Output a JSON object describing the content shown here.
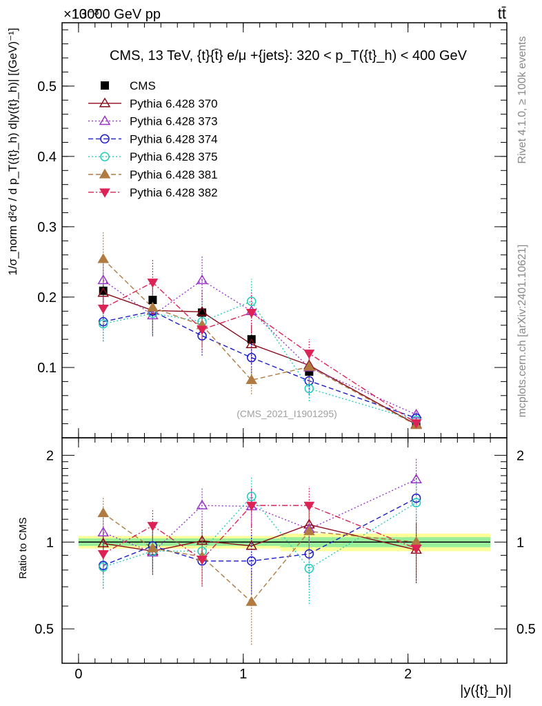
{
  "header": {
    "left": "13000 GeV pp",
    "right": "tt̄",
    "exponent": "×10⁻³"
  },
  "side_text": {
    "rivet": "Rivet 4.1.0, ≥ 100k events",
    "mcplots": "mcplots.cern.ch [arXiv:2401.10621]"
  },
  "watermark": "(CMS_2021_I1901295)",
  "chart_data": {
    "type": "line",
    "title": "CMS, 13 TeV, {t}{t̄} e/μ +{jets}: 320 <  p_T({t}_h) < 400 GeV",
    "xlabel": "|y({t}_h)|",
    "ylabel": "1/σ_norm d²σ / d p_T({t}_h) d|y({t}_h)| [(GeV)⁻¹]",
    "ratio_ylabel": "Ratio to CMS",
    "xlim": [
      -0.1,
      2.6
    ],
    "ylim": [
      0,
      0.59
    ],
    "ratio_ylim": [
      0.38,
      2.3
    ],
    "x_ticks": [
      "0",
      "1",
      "2"
    ],
    "y_ticks": [
      "0.1",
      "0.2",
      "0.3",
      "0.4",
      "0.5"
    ],
    "ratio_ticks": [
      "0.5",
      "1",
      "2"
    ],
    "x": [
      0.15,
      0.45,
      0.75,
      1.05,
      1.4,
      2.05
    ],
    "ref_band_inner": [
      0.03,
      0.03,
      0.03,
      0.03,
      0.04,
      0.04
    ],
    "ref_band_outer": [
      0.05,
      0.05,
      0.05,
      0.05,
      0.07,
      0.07
    ],
    "series": [
      {
        "name": "CMS",
        "color": "#000000",
        "marker": "square",
        "line": "none",
        "values": [
          0.209,
          0.196,
          0.178,
          0.14,
          0.094,
          0.02
        ],
        "ratio": [
          1,
          1,
          1,
          1,
          1,
          1
        ]
      },
      {
        "name": "Pythia 6.428 370",
        "color": "#8b0a1a",
        "marker": "triangle-open",
        "line": "solid",
        "values": [
          0.206,
          0.181,
          0.179,
          0.133,
          0.103,
          0.019
        ],
        "ratio": [
          0.99,
          0.93,
          1.01,
          0.97,
          1.15,
          0.94
        ]
      },
      {
        "name": "Pythia 6.428 373",
        "color": "#9933cc",
        "marker": "triangle-open",
        "line": "dotted",
        "values": [
          0.224,
          0.174,
          0.224,
          0.18,
          0.1,
          0.033
        ],
        "ratio": [
          1.08,
          0.92,
          1.34,
          1.33,
          1.11,
          1.65
        ]
      },
      {
        "name": "Pythia 6.428 374",
        "color": "#1a1acc",
        "marker": "circle-open",
        "line": "dashed",
        "values": [
          0.165,
          0.18,
          0.145,
          0.114,
          0.081,
          0.028
        ],
        "ratio": [
          0.83,
          0.97,
          0.86,
          0.86,
          0.91,
          1.42
        ]
      },
      {
        "name": "Pythia 6.428 375",
        "color": "#22ccbb",
        "marker": "circle-open",
        "line": "dotted",
        "values": [
          0.162,
          0.177,
          0.165,
          0.194,
          0.07,
          0.025
        ],
        "ratio": [
          0.82,
          0.93,
          0.93,
          1.44,
          0.81,
          1.37
        ]
      },
      {
        "name": "Pythia 6.428 381",
        "color": "#b07a40",
        "marker": "triangle-filled",
        "line": "dashed",
        "values": [
          0.254,
          0.185,
          0.16,
          0.082,
          0.101,
          0.018
        ],
        "ratio": [
          1.26,
          0.95,
          0.89,
          0.62,
          1.09,
          1.0
        ]
      },
      {
        "name": "Pythia 6.428 382",
        "color": "#dd2255",
        "marker": "triangledown-filled",
        "line": "dashdot",
        "values": [
          0.184,
          0.221,
          0.154,
          0.178,
          0.12,
          0.021
        ],
        "ratio": [
          0.91,
          1.14,
          0.87,
          1.34,
          1.34,
          0.95
        ]
      }
    ],
    "errors_main": [
      [
        0.008,
        0.007,
        0.008,
        0.007,
        0.006,
        0.002
      ],
      [
        0.025,
        0.035,
        0.03,
        0.028,
        0.018,
        0.004
      ],
      [
        0.03,
        0.03,
        0.035,
        0.03,
        0.025,
        0.006
      ],
      [
        0.028,
        0.032,
        0.028,
        0.026,
        0.02,
        0.005
      ],
      [
        0.025,
        0.03,
        0.028,
        0.032,
        0.018,
        0.005
      ],
      [
        0.038,
        0.035,
        0.03,
        0.02,
        0.025,
        0.004
      ],
      [
        0.028,
        0.033,
        0.03,
        0.028,
        0.02,
        0.004
      ]
    ],
    "errors_ratio": [
      [
        0.03,
        0.03,
        0.03,
        0.03,
        0.04,
        0.04
      ],
      [
        0.12,
        0.16,
        0.17,
        0.2,
        0.18,
        0.22
      ],
      [
        0.14,
        0.14,
        0.2,
        0.2,
        0.22,
        0.3
      ],
      [
        0.14,
        0.16,
        0.15,
        0.2,
        0.2,
        0.26
      ],
      [
        0.13,
        0.15,
        0.17,
        0.25,
        0.2,
        0.26
      ],
      [
        0.18,
        0.17,
        0.18,
        0.18,
        0.22,
        0.24
      ],
      [
        0.13,
        0.16,
        0.17,
        0.2,
        0.22,
        0.22
      ]
    ]
  }
}
